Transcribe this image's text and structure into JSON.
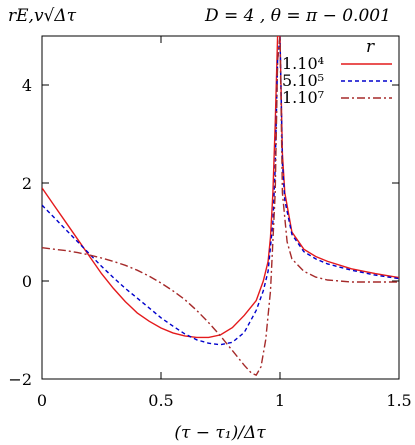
{
  "chart_data": {
    "type": "line",
    "title": "D = 4 ,  θ = π − 0.001",
    "ylabel": "rE,v√Δτ",
    "xlabel": "(τ − τ₁)/Δτ",
    "xlim": [
      0,
      1.5
    ],
    "ylim": [
      -2,
      5
    ],
    "x_ticks": [
      "0",
      "0.5",
      "1",
      "1.5"
    ],
    "x_tick_values": [
      0,
      0.5,
      1,
      1.5
    ],
    "y_ticks": [
      "−2",
      "0",
      "2",
      "4"
    ],
    "y_tick_values": [
      -2,
      0,
      2,
      4
    ],
    "grid": false,
    "legend": {
      "title": "r",
      "placement": "top-right"
    },
    "series": [
      {
        "name": "1.10⁴",
        "color": "#e41a1c",
        "dash": "solid",
        "points": [
          [
            0,
            1.9
          ],
          [
            0.05,
            1.55
          ],
          [
            0.1,
            1.2
          ],
          [
            0.15,
            0.85
          ],
          [
            0.2,
            0.5
          ],
          [
            0.25,
            0.15
          ],
          [
            0.3,
            -0.15
          ],
          [
            0.35,
            -0.42
          ],
          [
            0.4,
            -0.65
          ],
          [
            0.45,
            -0.82
          ],
          [
            0.5,
            -0.96
          ],
          [
            0.55,
            -1.06
          ],
          [
            0.6,
            -1.12
          ],
          [
            0.65,
            -1.15
          ],
          [
            0.7,
            -1.15
          ],
          [
            0.75,
            -1.1
          ],
          [
            0.8,
            -0.95
          ],
          [
            0.85,
            -0.7
          ],
          [
            0.9,
            -0.4
          ],
          [
            0.93,
            0.0
          ],
          [
            0.95,
            0.4
          ],
          [
            0.96,
            0.9
          ],
          [
            0.97,
            1.8
          ],
          [
            0.98,
            3.2
          ],
          [
            0.99,
            5.0
          ],
          [
            1.0,
            5.0
          ],
          [
            1.01,
            2.6
          ],
          [
            1.02,
            1.8
          ],
          [
            1.05,
            1.0
          ],
          [
            1.1,
            0.65
          ],
          [
            1.15,
            0.5
          ],
          [
            1.2,
            0.4
          ],
          [
            1.3,
            0.25
          ],
          [
            1.4,
            0.15
          ],
          [
            1.5,
            0.07
          ]
        ]
      },
      {
        "name": "5.10⁵",
        "color": "#0000cc",
        "dash": "dashed",
        "points": [
          [
            0,
            1.55
          ],
          [
            0.05,
            1.3
          ],
          [
            0.1,
            1.05
          ],
          [
            0.15,
            0.8
          ],
          [
            0.2,
            0.55
          ],
          [
            0.25,
            0.3
          ],
          [
            0.3,
            0.07
          ],
          [
            0.35,
            -0.15
          ],
          [
            0.4,
            -0.35
          ],
          [
            0.45,
            -0.55
          ],
          [
            0.5,
            -0.75
          ],
          [
            0.55,
            -0.92
          ],
          [
            0.6,
            -1.08
          ],
          [
            0.65,
            -1.2
          ],
          [
            0.7,
            -1.27
          ],
          [
            0.75,
            -1.3
          ],
          [
            0.8,
            -1.25
          ],
          [
            0.85,
            -1.05
          ],
          [
            0.9,
            -0.6
          ],
          [
            0.93,
            -0.2
          ],
          [
            0.95,
            0.2
          ],
          [
            0.97,
            1.2
          ],
          [
            0.98,
            2.3
          ],
          [
            0.99,
            4.5
          ],
          [
            1.0,
            5.0
          ],
          [
            1.01,
            2.4
          ],
          [
            1.02,
            1.65
          ],
          [
            1.05,
            0.95
          ],
          [
            1.1,
            0.6
          ],
          [
            1.15,
            0.45
          ],
          [
            1.2,
            0.35
          ],
          [
            1.3,
            0.22
          ],
          [
            1.4,
            0.12
          ],
          [
            1.5,
            0.05
          ]
        ]
      },
      {
        "name": "1.10⁷",
        "color": "#a52a2a",
        "dash": "dashdot",
        "points": [
          [
            0,
            0.68
          ],
          [
            0.05,
            0.65
          ],
          [
            0.1,
            0.62
          ],
          [
            0.15,
            0.58
          ],
          [
            0.2,
            0.53
          ],
          [
            0.25,
            0.47
          ],
          [
            0.3,
            0.4
          ],
          [
            0.35,
            0.32
          ],
          [
            0.4,
            0.22
          ],
          [
            0.45,
            0.1
          ],
          [
            0.5,
            -0.04
          ],
          [
            0.55,
            -0.2
          ],
          [
            0.6,
            -0.38
          ],
          [
            0.65,
            -0.6
          ],
          [
            0.7,
            -0.85
          ],
          [
            0.75,
            -1.12
          ],
          [
            0.8,
            -1.42
          ],
          [
            0.85,
            -1.72
          ],
          [
            0.88,
            -1.88
          ],
          [
            0.9,
            -1.92
          ],
          [
            0.92,
            -1.75
          ],
          [
            0.94,
            -1.2
          ],
          [
            0.96,
            -0.2
          ],
          [
            0.98,
            1.8
          ],
          [
            0.99,
            4.5
          ],
          [
            1.0,
            5.0
          ],
          [
            1.01,
            1.8
          ],
          [
            1.03,
            0.8
          ],
          [
            1.05,
            0.45
          ],
          [
            1.1,
            0.2
          ],
          [
            1.15,
            0.08
          ],
          [
            1.2,
            0.02
          ],
          [
            1.3,
            -0.02
          ],
          [
            1.4,
            -0.02
          ],
          [
            1.5,
            -0.02
          ]
        ]
      }
    ]
  }
}
